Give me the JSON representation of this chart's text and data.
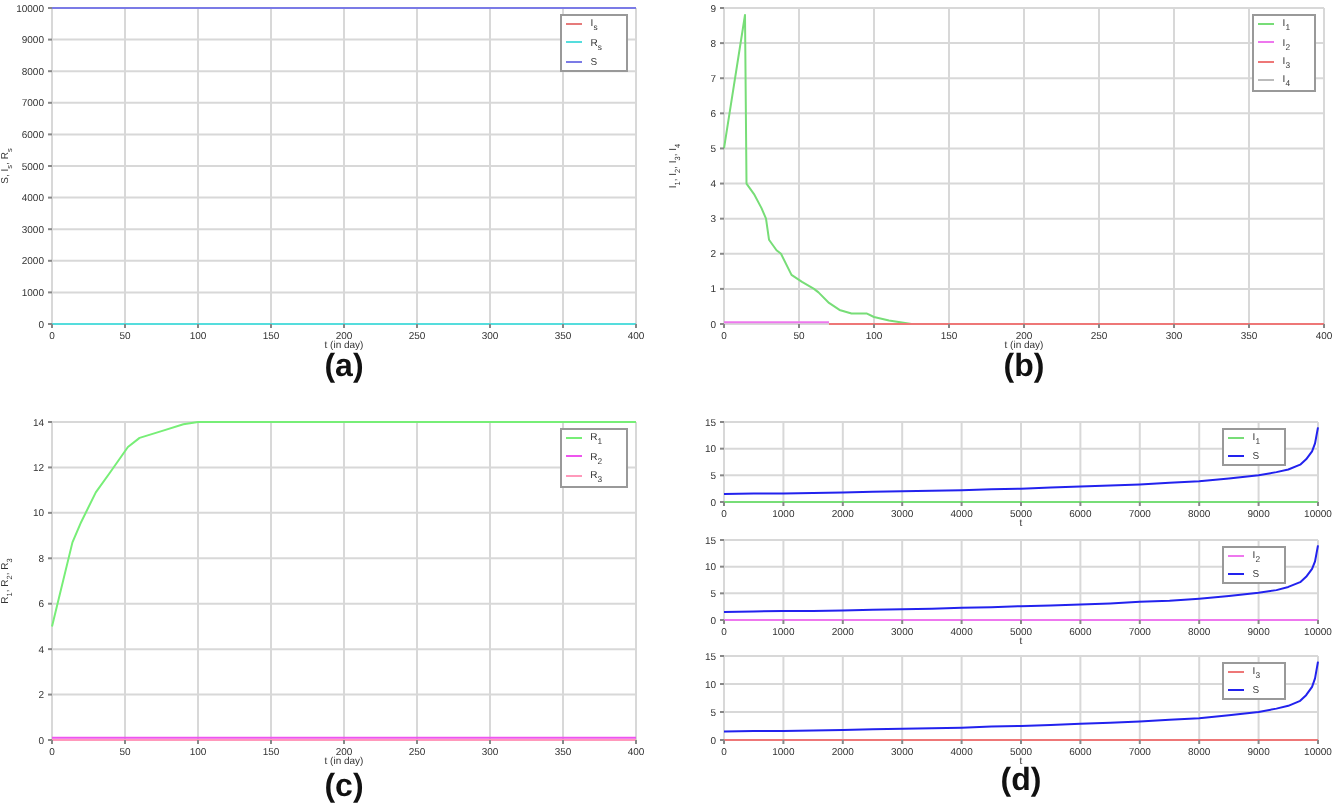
{
  "chart_data": [
    {
      "type": "line",
      "title": "(a)",
      "xlabel": "t (in day)",
      "ylabel": "S, I$_{s}$, R$_{s}$",
      "xlim": [
        0,
        400
      ],
      "xticks": [
        0,
        50,
        100,
        150,
        200,
        250,
        300,
        350,
        400
      ],
      "ylim": [
        0,
        10000
      ],
      "yticks": [
        0,
        1000,
        2000,
        3000,
        4000,
        5000,
        6000,
        7000,
        8000,
        9000,
        10000
      ],
      "grid": true,
      "legend": "top right",
      "marker": "none",
      "series": [
        {
          "name": "S",
          "color": "#7b7be6",
          "x": [
            0,
            400
          ],
          "values": [
            10000,
            10000
          ]
        },
        {
          "name": "I$_{s}$",
          "color": "#e67b7b"
        },
        {
          "name": "R$_{s}$",
          "color": "#55dddd",
          "x": [
            0,
            400
          ],
          "values": [
            0,
            0
          ]
        }
      ]
    },
    {
      "type": "line",
      "title": "(b)",
      "xlabel": "t (in day)",
      "ylabel": "I$_{1}$, I$_{2}$, I$_{3}$, I$_{4}$",
      "xlim": [
        0,
        400
      ],
      "xticks": [
        0,
        50,
        100,
        150,
        200,
        250,
        300,
        350,
        400
      ],
      "ylim": [
        0,
        9
      ],
      "yticks": [
        0,
        1,
        2,
        3,
        4,
        5,
        6,
        7,
        8,
        9
      ],
      "grid": true,
      "legend": "top right",
      "marker": "none",
      "series": [
        {
          "name": "I$_{1}$",
          "color": "#77dd77",
          "x": [
            0,
            14,
            15,
            20,
            25,
            28,
            30,
            35,
            38,
            45,
            52,
            60,
            63,
            70,
            77,
            85,
            95,
            100,
            110,
            125
          ],
          "values": [
            5,
            8.8,
            4,
            3.7,
            3.3,
            3,
            2.4,
            2.1,
            2,
            1.4,
            1.2,
            1,
            0.9,
            0.6,
            0.4,
            0.3,
            0.3,
            0.2,
            0.1,
            0
          ]
        },
        {
          "name": "I$_{2}$",
          "color": "#ee77ee",
          "x": [
            0,
            70
          ],
          "values": [
            0.05,
            0.05
          ]
        },
        {
          "name": "I$_{3}$",
          "color": "#ee7777",
          "x": [
            70,
            400
          ],
          "values": [
            0,
            0
          ]
        },
        {
          "name": "I$_{4}$",
          "color": "#bbbbbb"
        }
      ]
    },
    {
      "type": "line",
      "title": "(c)",
      "xlabel": "t (in day)",
      "ylabel": "R$_{1}$, R$_{2}$, R$_{3}$",
      "xlim": [
        0,
        400
      ],
      "xticks": [
        0,
        50,
        100,
        150,
        200,
        250,
        300,
        350,
        400
      ],
      "ylim": [
        0,
        14
      ],
      "yticks": [
        0,
        2,
        4,
        6,
        8,
        10,
        12,
        14
      ],
      "grid": true,
      "legend": "top right",
      "marker": "none",
      "series": [
        {
          "name": "R$_{1}$",
          "color": "#77ee77",
          "x": [
            0,
            14,
            20,
            30,
            40,
            52,
            60,
            75,
            90,
            100,
            400
          ],
          "values": [
            5,
            8.7,
            9.6,
            10.9,
            11.8,
            12.9,
            13.3,
            13.6,
            13.9,
            14,
            14
          ]
        },
        {
          "name": "R$_{2}$",
          "color": "#ee55ee",
          "x": [
            0,
            400
          ],
          "values": [
            0.1,
            0.1
          ]
        },
        {
          "name": "R$_{3}$",
          "color": "#ff99bb",
          "x": [
            0,
            400
          ],
          "values": [
            0,
            0
          ]
        }
      ]
    },
    {
      "type": "line",
      "xlabel": "t",
      "xlim": [
        0,
        10000
      ],
      "xticks": [
        0,
        1000,
        2000,
        3000,
        4000,
        5000,
        6000,
        7000,
        8000,
        9000,
        10000
      ],
      "ylim": [
        0,
        15
      ],
      "yticks": [
        0,
        5,
        10,
        15
      ],
      "grid": true,
      "legend": "top right",
      "marker": "none",
      "series": [
        {
          "name": "S",
          "color": "#2222ee",
          "x": [
            0,
            500,
            1000,
            1500,
            2000,
            2500,
            3000,
            3500,
            4000,
            4500,
            5000,
            5500,
            6000,
            6500,
            7000,
            7500,
            8000,
            8500,
            9000,
            9300,
            9500,
            9700,
            9800,
            9900,
            9950,
            10000
          ],
          "values": [
            1.5,
            1.6,
            1.6,
            1.7,
            1.8,
            1.9,
            2,
            2.1,
            2.2,
            2.4,
            2.5,
            2.7,
            2.9,
            3.1,
            3.3,
            3.6,
            3.9,
            4.4,
            5,
            5.6,
            6.1,
            7,
            8,
            9.5,
            11,
            14
          ]
        },
        {
          "name": "I$_{1}$",
          "color": "#77dd77",
          "x": [
            0,
            10000
          ],
          "values": [
            0,
            0
          ]
        }
      ]
    },
    {
      "type": "line",
      "xlabel": "t",
      "xlim": [
        0,
        10000
      ],
      "xticks": [
        0,
        1000,
        2000,
        3000,
        4000,
        5000,
        6000,
        7000,
        8000,
        9000,
        10000
      ],
      "ylim": [
        0,
        15
      ],
      "yticks": [
        0,
        5,
        10,
        15
      ],
      "grid": true,
      "legend": "top right",
      "marker": "none",
      "series": [
        {
          "name": "S",
          "color": "#2222ee",
          "x": [
            0,
            500,
            1000,
            1500,
            2000,
            2500,
            3000,
            3500,
            4000,
            4500,
            5000,
            5500,
            6000,
            6500,
            7000,
            7500,
            8000,
            8500,
            9000,
            9300,
            9500,
            9700,
            9800,
            9900,
            9950,
            10000
          ],
          "values": [
            1.5,
            1.6,
            1.7,
            1.7,
            1.8,
            1.9,
            2,
            2.1,
            2.3,
            2.4,
            2.6,
            2.7,
            2.9,
            3.1,
            3.4,
            3.6,
            4,
            4.5,
            5.1,
            5.6,
            6.2,
            7.1,
            8.1,
            9.6,
            11,
            14
          ]
        },
        {
          "name": "I$_{2}$",
          "color": "#ee77ee",
          "x": [
            0,
            10000
          ],
          "values": [
            0,
            0
          ]
        }
      ]
    },
    {
      "type": "line",
      "title": "(d)",
      "xlabel": "t",
      "xlim": [
        0,
        10000
      ],
      "xticks": [
        0,
        1000,
        2000,
        3000,
        4000,
        5000,
        6000,
        7000,
        8000,
        9000,
        10000
      ],
      "ylim": [
        0,
        15
      ],
      "yticks": [
        0,
        5,
        10,
        15
      ],
      "grid": true,
      "legend": "top right",
      "marker": "none",
      "series": [
        {
          "name": "S",
          "color": "#2222ee",
          "x": [
            0,
            500,
            1000,
            1500,
            2000,
            2500,
            3000,
            3500,
            4000,
            4500,
            5000,
            5500,
            6000,
            6500,
            7000,
            7500,
            8000,
            8500,
            9000,
            9300,
            9500,
            9700,
            9800,
            9900,
            9950,
            10000
          ],
          "values": [
            1.5,
            1.6,
            1.6,
            1.7,
            1.8,
            1.9,
            2,
            2.1,
            2.2,
            2.4,
            2.5,
            2.7,
            2.9,
            3.1,
            3.3,
            3.6,
            3.9,
            4.4,
            5,
            5.6,
            6.1,
            7,
            8,
            9.5,
            11,
            14
          ]
        },
        {
          "name": "I$_{3}$",
          "color": "#ee7777",
          "x": [
            0,
            10000
          ],
          "values": [
            0,
            0
          ]
        }
      ]
    }
  ]
}
